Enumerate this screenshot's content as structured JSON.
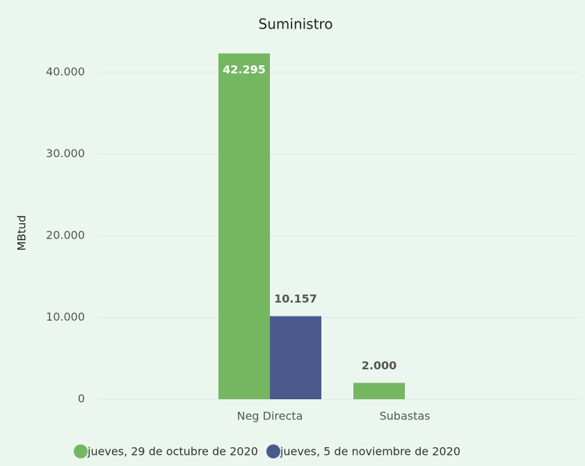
{
  "chart_data": {
    "type": "bar",
    "title": "Suministro",
    "y_label": "MBtud",
    "categories": [
      "Neg Directa",
      "Subastas"
    ],
    "series": [
      {
        "name": "jueves, 29 de octubre de 2020",
        "color": "#74b760",
        "values": [
          42295,
          2000
        ],
        "value_labels": [
          "42.295",
          "2.000"
        ]
      },
      {
        "name": "jueves, 5 de noviembre de 2020",
        "color": "#4b5a8c",
        "values": [
          10157,
          null
        ],
        "value_labels": [
          "10.157",
          null
        ]
      }
    ],
    "ylim": [
      0,
      45000
    ],
    "yticks": [
      0,
      {
        "value": 10000,
        "label": "10.000"
      },
      {
        "value": 20000,
        "label": "20.000"
      },
      {
        "value": 30000,
        "label": "30.000"
      },
      {
        "value": 40000,
        "label": "40.000"
      }
    ],
    "grid": true,
    "legend": "bottom"
  }
}
